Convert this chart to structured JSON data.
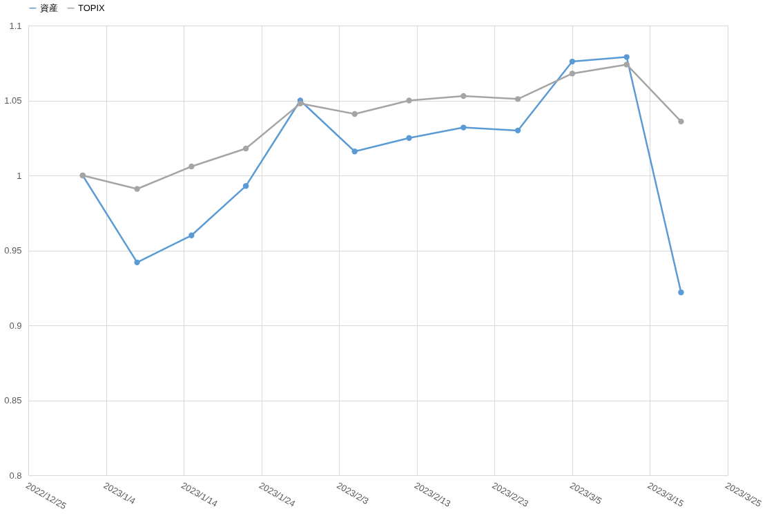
{
  "chart_data": {
    "type": "line",
    "x": [
      "2023-01-01",
      "2023-01-08",
      "2023-01-15",
      "2023-01-22",
      "2023-01-29",
      "2023-02-05",
      "2023-02-12",
      "2023-02-19",
      "2023-02-26",
      "2023-03-05",
      "2023-03-12",
      "2023-03-19"
    ],
    "series": [
      {
        "name": "資産",
        "color": "#5b9bd5",
        "values": [
          1.0,
          0.942,
          0.96,
          0.993,
          1.05,
          1.016,
          1.025,
          1.032,
          1.03,
          1.076,
          1.079,
          0.922
        ]
      },
      {
        "name": "TOPIX",
        "color": "#a5a5a5",
        "values": [
          1.0,
          0.991,
          1.006,
          1.018,
          1.048,
          1.041,
          1.05,
          1.053,
          1.051,
          1.068,
          1.074,
          1.036
        ]
      }
    ],
    "xlim": [
      "2022-12-25",
      "2023-03-25"
    ],
    "xticks": [
      {
        "value": "2022-12-25",
        "label": "2022/12/25"
      },
      {
        "value": "2023-01-04",
        "label": "2023/1/4"
      },
      {
        "value": "2023-01-14",
        "label": "2023/1/14"
      },
      {
        "value": "2023-01-24",
        "label": "2023/1/24"
      },
      {
        "value": "2023-02-03",
        "label": "2023/2/3"
      },
      {
        "value": "2023-02-13",
        "label": "2023/2/13"
      },
      {
        "value": "2023-02-23",
        "label": "2023/2/23"
      },
      {
        "value": "2023-03-05",
        "label": "2023/3/5"
      },
      {
        "value": "2023-03-15",
        "label": "2023/3/15"
      },
      {
        "value": "2023-03-25",
        "label": "2023/3/25"
      }
    ],
    "ylim": [
      0.8,
      1.1
    ],
    "yticks": [
      0.8,
      0.85,
      0.9,
      0.95,
      1,
      1.05,
      1.1
    ],
    "grid": true,
    "legend": "top",
    "marker": "circle",
    "line_style": "solid"
  }
}
